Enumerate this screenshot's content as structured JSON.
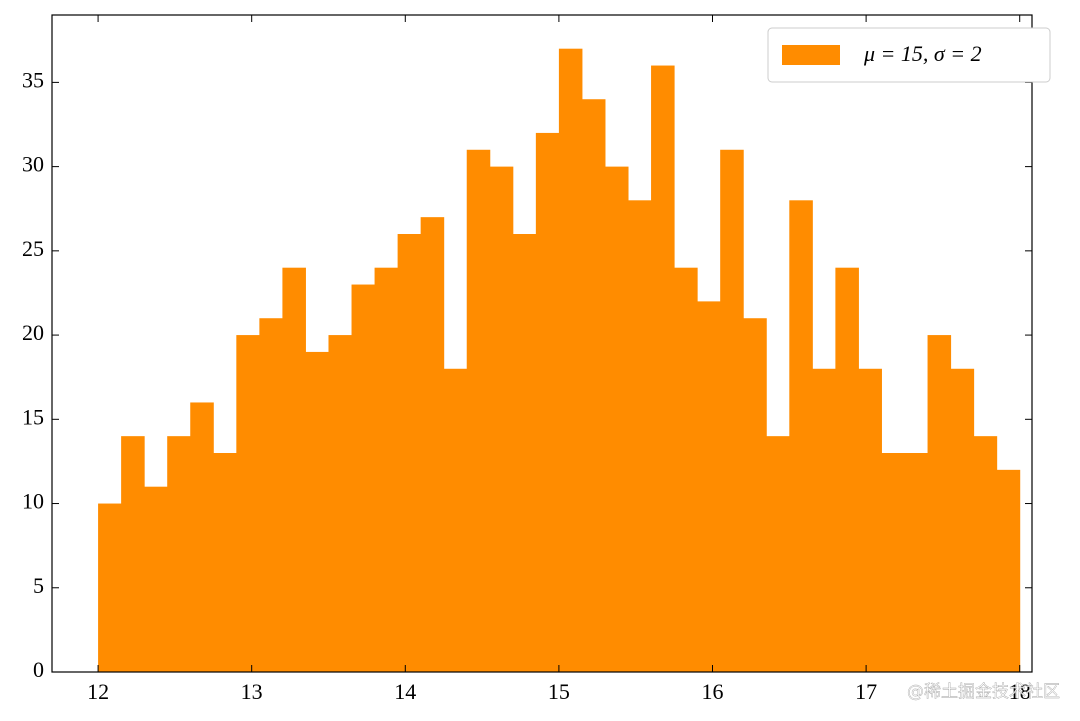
{
  "chart_data": {
    "type": "histogram",
    "bins": [
      12,
      12.15,
      12.3,
      12.45,
      12.6,
      12.75,
      12.9,
      13.05,
      13.2,
      13.35,
      13.5,
      13.65,
      13.8,
      13.95,
      14.1,
      14.25,
      14.4,
      14.55,
      14.7,
      14.85,
      15,
      15.15,
      15.3,
      15.45,
      15.6,
      15.75,
      15.9,
      16.05,
      16.2,
      16.35,
      16.5,
      16.65,
      16.8,
      16.95,
      17.1,
      17.25,
      17.4,
      17.55,
      17.7,
      17.85,
      18
    ],
    "series": [
      {
        "name": "μ = 15, σ = 2",
        "color": "#ff8c00",
        "values": [
          10,
          14,
          11,
          14,
          16,
          13,
          20,
          21,
          24,
          19,
          20,
          23,
          24,
          26,
          27,
          18,
          31,
          30,
          26,
          32,
          37,
          34,
          30,
          28,
          36,
          24,
          22,
          31,
          21,
          14,
          28,
          18,
          24,
          18,
          13,
          13,
          20,
          18,
          14,
          12
        ]
      }
    ],
    "xlim": [
      11.7,
      18.08
    ],
    "xticks": [
      12,
      13,
      14,
      15,
      16,
      17,
      18
    ],
    "ylim": [
      0,
      39
    ],
    "yticks": [
      0,
      5,
      10,
      15,
      20,
      25,
      30,
      35
    ],
    "legend": "upper right",
    "watermark": "@稀土掘金技术社区"
  }
}
